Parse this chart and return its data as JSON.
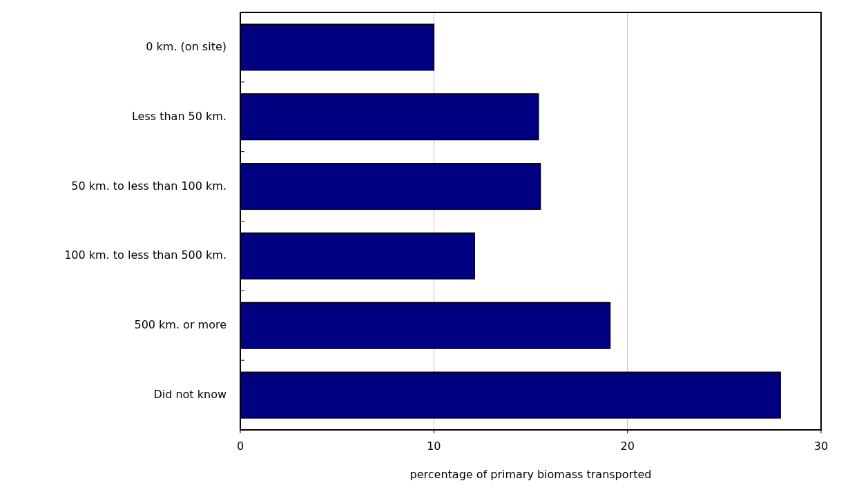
{
  "chart_data": {
    "type": "bar",
    "orientation": "horizontal",
    "xlabel": "percentage of primary biomass transported",
    "categories": [
      "0 km. (on site)",
      "Less than 50 km.",
      "50 km. to less than 100 km.",
      "100 km. to less than 500 km.",
      "500 km. or more",
      "Did not know"
    ],
    "values": [
      10.0,
      15.4,
      15.5,
      12.1,
      19.1,
      27.9
    ],
    "color": "#000080",
    "xlim": [
      0,
      30
    ],
    "xticks": [
      0,
      10,
      20,
      30
    ],
    "grid": "x"
  }
}
